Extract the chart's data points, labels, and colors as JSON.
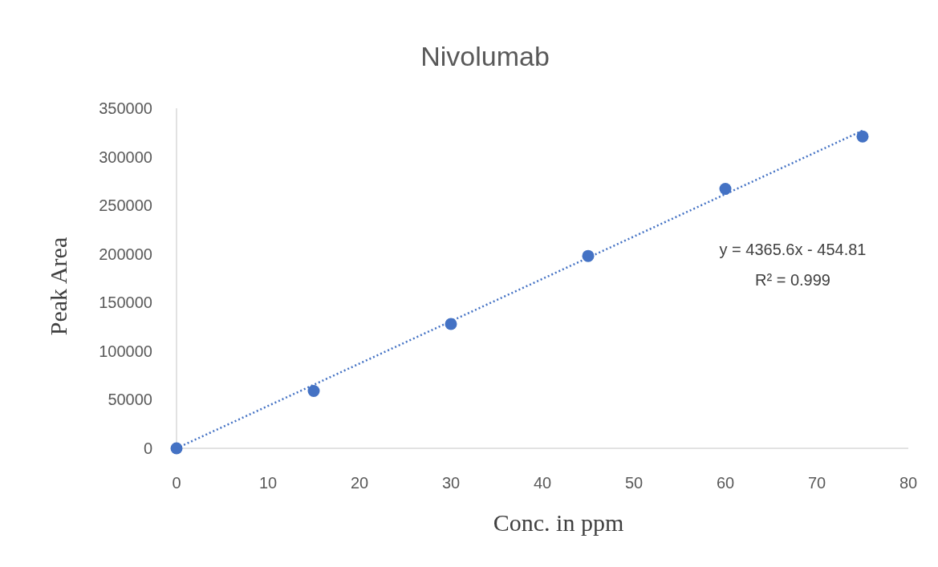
{
  "chart_data": {
    "type": "scatter",
    "title": "Nivolumab",
    "xlabel": "Conc. in ppm",
    "ylabel": "Peak Area",
    "xlim": [
      0,
      80
    ],
    "xticks": [
      0,
      10,
      20,
      30,
      40,
      50,
      60,
      70,
      80
    ],
    "ylim": [
      0,
      350000
    ],
    "yticks": [
      0,
      50000,
      100000,
      150000,
      200000,
      250000,
      300000,
      350000
    ],
    "grid": false,
    "marker": "circle",
    "series": [
      {
        "color": "#4472c4",
        "x": [
          0,
          15,
          30,
          45,
          60,
          75
        ],
        "values": [
          0,
          59000,
          128000,
          198000,
          267000,
          321000
        ]
      },
      {
        "type": "line",
        "color": "#4472c4",
        "line_style": "dotted",
        "marker": "none",
        "x": [
          0,
          75
        ],
        "values": [
          0,
          327000
        ]
      }
    ],
    "annotations": [
      "y = 4365.6x - 454.81",
      "R² = 0.999"
    ]
  }
}
